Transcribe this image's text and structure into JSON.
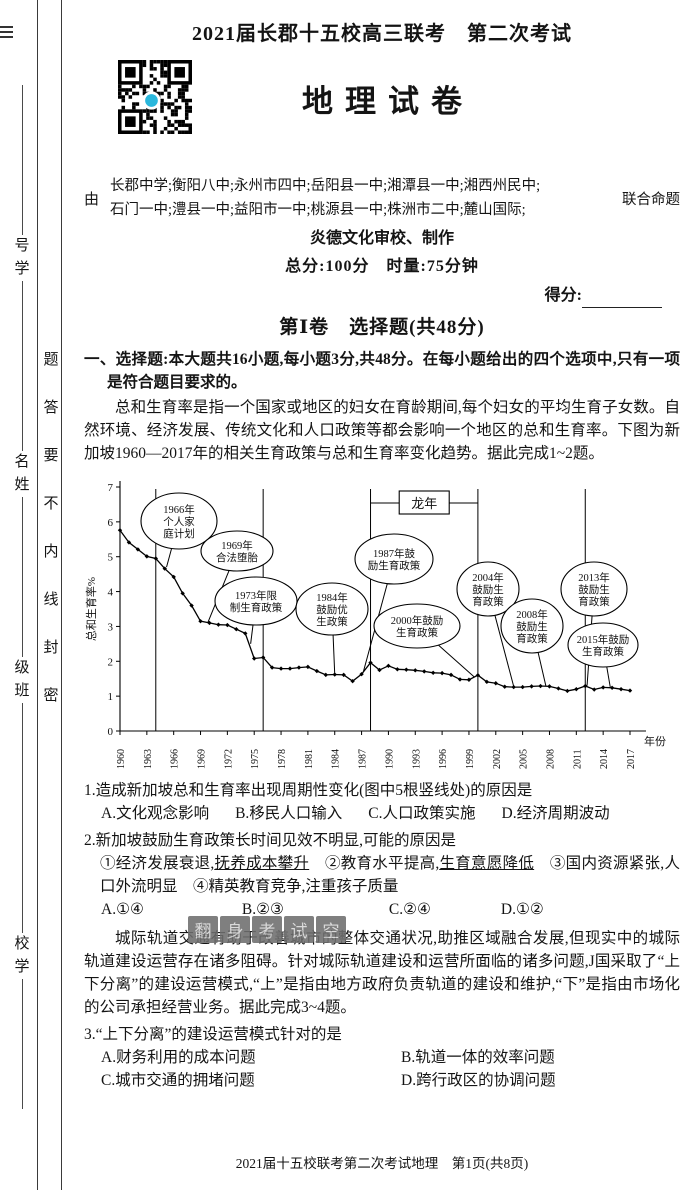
{
  "page": {
    "title": "2021届长郡十五校高三联考　第二次考试",
    "subject_title": "地理试卷",
    "by_label": "由",
    "schools_line1": "长郡中学;衡阳八中;永州市四中;岳阳县一中;湘潭县一中;湘西州民中;",
    "schools_line2": "石门一中;澧县一中;益阳市一中;桃源县一中;株洲市二中;麓山国际;",
    "joint_label": "联合命题",
    "review_line": "炎德文化审校、制作",
    "score_time_line": "总分:100分　时量:75分钟",
    "score_label": "得分:",
    "section_title": "第Ⅰ卷　选择题(共48分)",
    "footer": "2021届十五校联考第二次考试地理　第1页(共8页)"
  },
  "binding": {
    "seal_text": "密封线内不要答题",
    "fields": [
      "学号",
      "姓名",
      "班级",
      "学校"
    ]
  },
  "instructions": "一、选择题:本大题共16小题,每小题3分,共48分。在每小题给出的四个选项中,只有一项是符合题目要求的。",
  "intro_paragraph": "总和生育率是指一个国家或地区的妇女在育龄期间,每个妇女的平均生育子女数。自然环境、经济发展、传统文化和人口政策等都会影响一个地区的总和生育率。下图为新加坡1960—2017年的相关生育政策与总和生育率变化趋势。据此完成1~2题。",
  "rail_paragraph": "城际轨道交通有助于改善城市的整体交通状况,助推区域融合发展,但现实中的城际轨道建设运营存在诸多阻碍。针对城际轨道建设和运营所面临的诸多问题,J国采取了“上下分离”的建设运营模式,“上”是指由地方政府负责轨道的建设和维护,“下”是指由市场化的公司承担经营业务。据此完成3~4题。",
  "questions": {
    "q1": {
      "stem": "1.造成新加坡总和生育率出现周期性变化(图中5根竖线处)的原因是",
      "options": [
        "A.文化观念影响",
        "B.移民人口输入",
        "C.人口政策实施",
        "D.经济周期波动"
      ]
    },
    "q2": {
      "stem": "2.新加坡鼓励生育政策长时间见效不明显,可能的原因是",
      "statement_segments": [
        {
          "text": "①经济发展衰退,"
        },
        {
          "text": "抚养成本攀升",
          "underline": true
        },
        {
          "text": "　②教育水平提高,"
        },
        {
          "text": "生育意愿降低",
          "underline": true
        },
        {
          "text": "　③国内资源紧张,人口外流明显　④精英教育竞争,注重孩子质量"
        }
      ],
      "options": [
        "A.①④",
        "B.②③",
        "C.②④",
        "D.①②"
      ]
    },
    "q3": {
      "stem": "3.“上下分离”的建设运营模式针对的是",
      "options": [
        "A.财务利用的成本问题",
        "B.轨道一体的效率问题",
        "C.城市交通的拥堵问题",
        "D.跨行政区的协调问题"
      ]
    }
  },
  "watermark": {
    "characters": [
      "翻",
      "身",
      "考",
      "试",
      "空"
    ]
  },
  "colors": {
    "qr_dot": "#2ab7dc",
    "watermark_bg": "#6e6e6e",
    "watermark_text": "#d6d6d6",
    "ink": "#141414"
  },
  "chart_data": {
    "type": "line",
    "title": "",
    "ylabel": "总和生育率%",
    "xlabel": "年份",
    "ylim": [
      0,
      7
    ],
    "x_range": [
      1960,
      2017
    ],
    "x_ticks": [
      1960,
      1963,
      1966,
      1969,
      1972,
      1975,
      1978,
      1981,
      1984,
      1987,
      1990,
      1993,
      1996,
      1999,
      2002,
      2005,
      2008,
      2011,
      2014,
      2017
    ],
    "dragon_year_label": "龙年",
    "dragon_years": [
      1964,
      1976,
      1988,
      2000,
      2012
    ],
    "years": [
      1960,
      1961,
      1962,
      1963,
      1964,
      1965,
      1966,
      1967,
      1968,
      1969,
      1970,
      1971,
      1972,
      1973,
      1974,
      1975,
      1976,
      1977,
      1978,
      1979,
      1980,
      1981,
      1982,
      1983,
      1984,
      1985,
      1986,
      1987,
      1988,
      1989,
      1990,
      1991,
      1992,
      1993,
      1994,
      1995,
      1996,
      1997,
      1998,
      1999,
      2000,
      2001,
      2002,
      2003,
      2004,
      2005,
      2006,
      2007,
      2008,
      2009,
      2010,
      2011,
      2012,
      2013,
      2014,
      2015,
      2016,
      2017
    ],
    "values": [
      5.76,
      5.41,
      5.21,
      5.01,
      4.95,
      4.66,
      4.42,
      3.95,
      3.6,
      3.15,
      3.1,
      3.05,
      3.04,
      2.92,
      2.8,
      2.08,
      2.11,
      1.82,
      1.79,
      1.79,
      1.82,
      1.84,
      1.72,
      1.61,
      1.62,
      1.61,
      1.43,
      1.63,
      1.96,
      1.75,
      1.87,
      1.77,
      1.76,
      1.74,
      1.71,
      1.67,
      1.66,
      1.61,
      1.48,
      1.47,
      1.6,
      1.41,
      1.37,
      1.27,
      1.26,
      1.26,
      1.28,
      1.29,
      1.28,
      1.22,
      1.15,
      1.2,
      1.29,
      1.19,
      1.25,
      1.24,
      1.2,
      1.16
    ],
    "annotations": [
      {
        "label": "1966年个人家庭计划",
        "lines": [
          "1966年",
          "个人家",
          "庭计划"
        ],
        "target_year": 1965.2,
        "target_value": 4.7
      },
      {
        "label": "1969年合法堕胎",
        "lines": [
          "1969年",
          "合法堕胎"
        ],
        "target_year": 1969.8,
        "target_value": 3.1
      },
      {
        "label": "1973年限制生育政策",
        "lines": [
          "1973年限",
          "制生育政策"
        ],
        "target_year": 1974.6,
        "target_value": 2.5
      },
      {
        "label": "1984年鼓励优生政策",
        "lines": [
          "1984年",
          "鼓励优",
          "生政策"
        ],
        "target_year": 1984,
        "target_value": 1.62
      },
      {
        "label": "1987年鼓励生育政策",
        "lines": [
          "1987年鼓",
          "励生育政策"
        ],
        "target_year": 1987.2,
        "target_value": 1.7
      },
      {
        "label": "2000年鼓励生育政策",
        "lines": [
          "2000年鼓励",
          "生育政策"
        ],
        "target_year": 1999.6,
        "target_value": 1.55
      },
      {
        "label": "2004年鼓励生育政策",
        "lines": [
          "2004年",
          "鼓励生",
          "育政策"
        ],
        "target_year": 2004,
        "target_value": 1.28
      },
      {
        "label": "2008年鼓励生育政策",
        "lines": [
          "2008年",
          "鼓励生",
          "育政策"
        ],
        "target_year": 2007.6,
        "target_value": 1.29
      },
      {
        "label": "2013年鼓励生育政策",
        "lines": [
          "2013年",
          "鼓励生",
          "育政策"
        ],
        "target_year": 2012.2,
        "target_value": 1.3
      },
      {
        "label": "2015年鼓励生育政策",
        "lines": [
          "2015年鼓励",
          "生育政策"
        ],
        "target_year": 2014.8,
        "target_value": 1.25
      }
    ]
  }
}
